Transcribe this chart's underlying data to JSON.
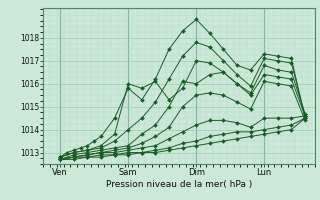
{
  "xlabel": "Pression niveau de la mer( hPa )",
  "bg_color": "#cce8d8",
  "grid_color_major": "#99ccb0",
  "grid_color_minor": "#b8ddc8",
  "line_color": "#1a5c28",
  "ylim": [
    1012.5,
    1019.3
  ],
  "xlim": [
    0.0,
    4.0
  ],
  "yticks": [
    1013,
    1014,
    1015,
    1016,
    1017,
    1018
  ],
  "xtick_positions": [
    0.25,
    1.25,
    2.25,
    3.25
  ],
  "xtick_labels": [
    "Ven",
    "Sam",
    "Dim",
    "Lun"
  ],
  "vlines": [
    0.25,
    1.25,
    2.25,
    3.25
  ],
  "series": [
    {
      "x": [
        0.25,
        0.35,
        0.45,
        0.55,
        0.65,
        0.75,
        0.85,
        1.05,
        1.25,
        1.45,
        1.65,
        1.85,
        2.05,
        2.25,
        2.45,
        2.65,
        2.85,
        3.05,
        3.25,
        3.45,
        3.65,
        3.85
      ],
      "y": [
        1012.8,
        1013.0,
        1013.1,
        1013.2,
        1013.3,
        1013.5,
        1013.7,
        1014.5,
        1015.8,
        1015.3,
        1016.2,
        1017.5,
        1018.3,
        1018.8,
        1018.2,
        1017.5,
        1016.8,
        1016.6,
        1017.3,
        1017.2,
        1017.1,
        1014.5
      ]
    },
    {
      "x": [
        0.25,
        0.45,
        0.65,
        0.85,
        1.05,
        1.25,
        1.45,
        1.65,
        1.85,
        2.05,
        2.25,
        2.45,
        2.65,
        2.85,
        3.05,
        3.25,
        3.45,
        3.65,
        3.85
      ],
      "y": [
        1012.8,
        1013.0,
        1013.1,
        1013.3,
        1013.8,
        1016.0,
        1015.8,
        1016.1,
        1015.3,
        1015.8,
        1017.0,
        1016.9,
        1016.5,
        1016.0,
        1015.6,
        1016.8,
        1016.6,
        1016.5,
        1014.7
      ]
    },
    {
      "x": [
        0.25,
        0.45,
        0.65,
        0.85,
        1.05,
        1.25,
        1.45,
        1.65,
        1.85,
        2.05,
        2.25,
        2.45,
        2.65,
        2.85,
        3.05,
        3.25,
        3.45,
        3.65,
        3.85
      ],
      "y": [
        1012.8,
        1013.0,
        1013.1,
        1013.2,
        1013.5,
        1014.0,
        1014.5,
        1015.2,
        1016.2,
        1017.2,
        1017.8,
        1017.6,
        1017.0,
        1016.4,
        1015.9,
        1017.1,
        1017.0,
        1016.9,
        1014.6
      ]
    },
    {
      "x": [
        0.25,
        0.45,
        0.65,
        0.85,
        1.05,
        1.25,
        1.45,
        1.65,
        1.85,
        2.05,
        2.25,
        2.45,
        2.65,
        2.85,
        3.05,
        3.25,
        3.45,
        3.65,
        3.85
      ],
      "y": [
        1012.7,
        1012.9,
        1013.0,
        1013.1,
        1013.2,
        1013.3,
        1013.8,
        1014.2,
        1015.0,
        1016.1,
        1016.0,
        1016.4,
        1016.5,
        1016.0,
        1015.5,
        1016.4,
        1016.3,
        1016.2,
        1014.6
      ]
    },
    {
      "x": [
        0.25,
        0.45,
        0.65,
        0.85,
        1.05,
        1.25,
        1.45,
        1.65,
        1.85,
        2.05,
        2.25,
        2.45,
        2.65,
        2.85,
        3.05,
        3.25,
        3.45,
        3.65,
        3.85
      ],
      "y": [
        1012.7,
        1012.8,
        1012.9,
        1013.0,
        1013.1,
        1013.2,
        1013.4,
        1013.7,
        1014.1,
        1015.0,
        1015.5,
        1015.6,
        1015.5,
        1015.2,
        1014.9,
        1016.1,
        1016.0,
        1015.9,
        1014.4
      ]
    },
    {
      "x": [
        0.25,
        0.45,
        0.65,
        0.85,
        1.05,
        1.25,
        1.45,
        1.65,
        1.85,
        2.05,
        2.25,
        2.45,
        2.65,
        2.85,
        3.05,
        3.25,
        3.45,
        3.65,
        3.85
      ],
      "y": [
        1012.7,
        1012.8,
        1012.9,
        1013.0,
        1013.0,
        1013.1,
        1013.2,
        1013.3,
        1013.6,
        1013.9,
        1014.2,
        1014.4,
        1014.4,
        1014.3,
        1014.1,
        1014.5,
        1014.5,
        1014.5,
        1014.6
      ]
    },
    {
      "x": [
        0.25,
        0.45,
        0.65,
        0.85,
        1.05,
        1.25,
        1.45,
        1.65,
        1.85,
        2.05,
        2.25,
        2.45,
        2.65,
        2.85,
        3.05,
        3.25,
        3.45,
        3.65,
        3.85
      ],
      "y": [
        1012.7,
        1012.8,
        1012.8,
        1012.9,
        1012.9,
        1013.0,
        1013.0,
        1013.1,
        1013.2,
        1013.4,
        1013.5,
        1013.7,
        1013.8,
        1013.9,
        1013.9,
        1014.0,
        1014.1,
        1014.2,
        1014.5
      ]
    },
    {
      "x": [
        0.25,
        0.45,
        0.65,
        0.85,
        1.05,
        1.25,
        1.45,
        1.65,
        1.85,
        2.05,
        2.25,
        2.45,
        2.65,
        2.85,
        3.05,
        3.25,
        3.45,
        3.65,
        3.85
      ],
      "y": [
        1012.7,
        1012.7,
        1012.8,
        1012.8,
        1012.9,
        1012.9,
        1013.0,
        1013.0,
        1013.1,
        1013.2,
        1013.3,
        1013.4,
        1013.5,
        1013.6,
        1013.7,
        1013.8,
        1013.9,
        1014.0,
        1014.5
      ]
    }
  ]
}
